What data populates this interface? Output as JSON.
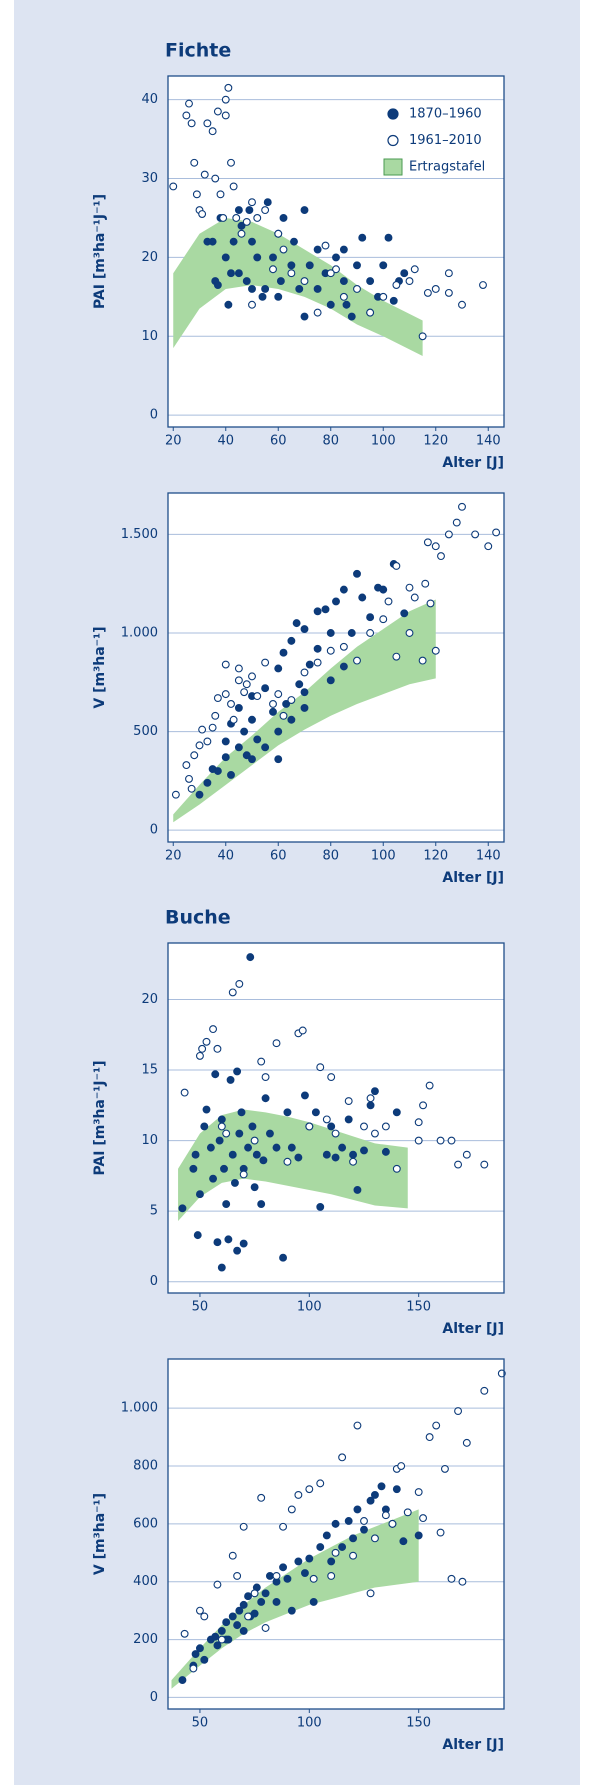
{
  "chart_data": [
    {
      "type": "scatter",
      "title": "Fichte",
      "ylabel": "PAI [m³ha⁻¹J⁻¹]",
      "xlabel": "Alter [J]",
      "xlim": [
        18,
        146
      ],
      "ylim": [
        -1.5,
        43
      ],
      "xticks": [
        20,
        40,
        60,
        80,
        100,
        120,
        140
      ],
      "yticks": [
        0,
        10,
        20,
        30,
        40
      ],
      "grid": true,
      "legend": "upper right",
      "series": [
        {
          "name": "1870–1960",
          "color": "#0d3b7a",
          "marker": "filled",
          "x": [
            33,
            35,
            36,
            37,
            38,
            40,
            41,
            42,
            43,
            45,
            46,
            48,
            49,
            50,
            52,
            54,
            55,
            56,
            58,
            60,
            61,
            62,
            65,
            66,
            68,
            70,
            70,
            72,
            75,
            78,
            80,
            82,
            85,
            86,
            88,
            90,
            92,
            95,
            98,
            100,
            102,
            104,
            106,
            108,
            45,
            50,
            60,
            75,
            85,
            95
          ],
          "values": [
            22,
            22,
            17,
            16.5,
            25,
            20,
            14,
            18,
            22,
            18,
            24,
            17,
            26,
            16,
            20,
            15,
            16,
            27,
            20,
            23,
            17,
            25,
            19,
            22,
            16,
            12.5,
            26,
            19,
            21,
            18,
            14,
            20,
            17,
            14,
            12.5,
            19,
            22.5,
            17,
            15,
            19,
            22.5,
            14.5,
            17,
            18,
            26,
            22,
            15,
            16,
            21,
            13
          ]
        },
        {
          "name": "1961–2010",
          "color": "#0d3b7a",
          "marker": "open",
          "x": [
            20,
            25,
            26,
            27,
            28,
            29,
            30,
            31,
            32,
            33,
            35,
            36,
            37,
            38,
            39,
            40,
            41,
            42,
            43,
            44,
            46,
            48,
            50,
            52,
            55,
            58,
            60,
            62,
            65,
            70,
            75,
            78,
            82,
            85,
            90,
            95,
            100,
            105,
            110,
            112,
            115,
            117,
            120,
            125,
            125,
            130,
            138,
            40,
            50,
            80
          ],
          "values": [
            29,
            38,
            39.5,
            37,
            32,
            28,
            26,
            25.5,
            30.5,
            37,
            36,
            30,
            38.5,
            28,
            25,
            38,
            41.5,
            32,
            29,
            25,
            23,
            24.5,
            27,
            25,
            26,
            18.5,
            23,
            21,
            18,
            17,
            13,
            21.5,
            18.5,
            15,
            16,
            13,
            15,
            16.5,
            17,
            18.5,
            10,
            15.5,
            16,
            18,
            15.5,
            14,
            16.5,
            40,
            14,
            18
          ]
        }
      ],
      "band": {
        "name": "Ertragstafel",
        "color": "#a9d9a2",
        "x": [
          20,
          30,
          40,
          50,
          60,
          70,
          80,
          90,
          100,
          115
        ],
        "lower": [
          8.5,
          13.5,
          16,
          16.5,
          16,
          15,
          13.5,
          11.5,
          10,
          7.5
        ],
        "upper": [
          18,
          23,
          25,
          24.5,
          23,
          21,
          19,
          16.5,
          14.5,
          12
        ]
      }
    },
    {
      "type": "scatter",
      "ylabel": "V [m³ha⁻¹]",
      "xlabel": "Alter [J]",
      "xlim": [
        18,
        146
      ],
      "ylim": [
        -60,
        1710
      ],
      "xticks": [
        20,
        40,
        60,
        80,
        100,
        120,
        140
      ],
      "yticks": [
        0,
        500,
        {
          "value": 1000,
          "label": "1.000"
        },
        {
          "value": 1500,
          "label": "1.500"
        }
      ],
      "grid": true,
      "series": [
        {
          "color": "#0d3b7a",
          "marker": "filled",
          "x": [
            30,
            33,
            35,
            37,
            40,
            40,
            42,
            42,
            45,
            45,
            47,
            48,
            50,
            50,
            52,
            55,
            55,
            58,
            60,
            60,
            62,
            63,
            65,
            65,
            67,
            68,
            70,
            70,
            72,
            75,
            75,
            78,
            80,
            80,
            82,
            85,
            88,
            90,
            92,
            95,
            98,
            100,
            104,
            108,
            60,
            70,
            85,
            50
          ],
          "values": [
            180,
            240,
            310,
            300,
            370,
            450,
            280,
            540,
            420,
            620,
            500,
            380,
            560,
            680,
            460,
            720,
            420,
            600,
            500,
            820,
            900,
            640,
            560,
            960,
            1050,
            740,
            1020,
            700,
            840,
            1110,
            920,
            1120,
            1000,
            760,
            1160,
            1220,
            1000,
            1300,
            1180,
            1080,
            1230,
            1220,
            1350,
            1100,
            360,
            620,
            830,
            360
          ]
        },
        {
          "color": "#0d3b7a",
          "marker": "open",
          "x": [
            21,
            25,
            26,
            27,
            28,
            30,
            31,
            33,
            35,
            36,
            37,
            40,
            40,
            42,
            43,
            45,
            45,
            47,
            48,
            50,
            52,
            55,
            58,
            60,
            62,
            65,
            70,
            75,
            80,
            85,
            90,
            95,
            100,
            102,
            105,
            110,
            112,
            115,
            116,
            118,
            120,
            122,
            125,
            128,
            130,
            135,
            140,
            143,
            117,
            120,
            110,
            105
          ],
          "values": [
            180,
            330,
            260,
            210,
            380,
            430,
            510,
            450,
            520,
            580,
            670,
            690,
            840,
            640,
            560,
            760,
            820,
            700,
            740,
            780,
            680,
            850,
            640,
            690,
            580,
            660,
            800,
            850,
            910,
            930,
            860,
            1000,
            1070,
            1160,
            880,
            1000,
            1180,
            860,
            1250,
            1150,
            910,
            1390,
            1500,
            1560,
            1640,
            1500,
            1440,
            1510,
            1460,
            1440,
            1230,
            1340
          ]
        }
      ],
      "band": {
        "color": "#a9d9a2",
        "x": [
          20,
          30,
          40,
          50,
          60,
          70,
          80,
          90,
          100,
          110,
          120
        ],
        "lower": [
          40,
          130,
          230,
          330,
          430,
          510,
          580,
          640,
          690,
          740,
          770
        ],
        "upper": [
          80,
          230,
          370,
          480,
          600,
          700,
          820,
          930,
          1020,
          1110,
          1170
        ]
      }
    },
    {
      "type": "scatter",
      "title": "Buche",
      "ylabel": "PAI [m³ha⁻¹J⁻¹]",
      "xlabel": "Alter [J]",
      "xlim": [
        35.4,
        189
      ],
      "ylim": [
        -0.8,
        24
      ],
      "xticks": [
        50,
        100,
        150
      ],
      "yticks": [
        0,
        5,
        10,
        15,
        20
      ],
      "grid": true,
      "series": [
        {
          "color": "#0d3b7a",
          "marker": "filled",
          "x": [
            42,
            47,
            48,
            49,
            50,
            52,
            53,
            55,
            56,
            57,
            58,
            59,
            60,
            60,
            61,
            62,
            63,
            64,
            65,
            66,
            67,
            67,
            68,
            69,
            70,
            70,
            72,
            73,
            74,
            75,
            76,
            78,
            79,
            80,
            82,
            85,
            88,
            90,
            92,
            95,
            98,
            100,
            103,
            105,
            108,
            110,
            112,
            115,
            118,
            120,
            122,
            125,
            128,
            130,
            135,
            140
          ],
          "values": [
            5.2,
            8,
            9,
            3.3,
            6.2,
            11,
            12.2,
            9.5,
            7.3,
            14.7,
            2.8,
            10,
            1,
            11.5,
            8,
            5.5,
            3,
            14.3,
            9,
            7,
            2.2,
            14.9,
            10.5,
            12,
            2.7,
            8,
            9.5,
            23,
            11,
            6.7,
            9,
            5.5,
            8.6,
            13,
            10.5,
            9.5,
            1.7,
            12,
            9.5,
            8.8,
            13.2,
            11,
            12,
            5.3,
            9,
            11,
            8.8,
            9.5,
            11.5,
            9,
            6.5,
            9.3,
            12.5,
            13.5,
            9.2,
            12
          ]
        },
        {
          "color": "#0d3b7a",
          "marker": "open",
          "x": [
            43,
            50,
            51,
            53,
            56,
            58,
            60,
            62,
            65,
            68,
            70,
            75,
            78,
            80,
            85,
            90,
            95,
            97,
            100,
            105,
            108,
            110,
            112,
            118,
            120,
            125,
            128,
            130,
            135,
            140,
            150,
            152,
            155,
            160,
            165,
            168,
            172,
            180,
            150
          ],
          "values": [
            13.4,
            16,
            16.5,
            17,
            17.9,
            16.5,
            11,
            10.5,
            20.5,
            21.1,
            7.6,
            10,
            15.6,
            14.5,
            16.9,
            8.5,
            17.6,
            17.8,
            11,
            15.2,
            11.5,
            14.5,
            10.5,
            12.8,
            8.5,
            11,
            13,
            10.5,
            11,
            8,
            10,
            12.5,
            13.9,
            10,
            10,
            8.3,
            9,
            8.3,
            11.3
          ]
        }
      ],
      "band": {
        "color": "#a9d9a2",
        "x": [
          40,
          50,
          60,
          70,
          80,
          90,
          100,
          110,
          120,
          130,
          145
        ],
        "lower": [
          4.3,
          6,
          7,
          7.3,
          7.1,
          6.8,
          6.5,
          6.2,
          5.8,
          5.4,
          5.2
        ],
        "upper": [
          8,
          10.5,
          11.8,
          12.2,
          12,
          11.7,
          11.3,
          10.8,
          10.3,
          9.8,
          9.5
        ]
      }
    },
    {
      "type": "scatter",
      "ylabel": "V [m³ha⁻¹]",
      "xlabel": "Alter [J]",
      "xlim": [
        35.4,
        189
      ],
      "ylim": [
        -40,
        1170
      ],
      "xticks": [
        50,
        100,
        150
      ],
      "yticks": [
        0,
        200,
        400,
        600,
        800,
        {
          "value": 1000,
          "label": "1.000"
        }
      ],
      "grid": true,
      "series": [
        {
          "color": "#0d3b7a",
          "marker": "filled",
          "x": [
            42,
            47,
            48,
            50,
            52,
            55,
            57,
            58,
            60,
            62,
            63,
            65,
            67,
            68,
            70,
            70,
            72,
            75,
            76,
            78,
            80,
            82,
            85,
            85,
            88,
            90,
            92,
            95,
            98,
            100,
            102,
            105,
            108,
            110,
            112,
            115,
            118,
            120,
            122,
            125,
            128,
            130,
            133,
            135,
            138,
            140,
            143,
            150,
            62,
            73
          ],
          "values": [
            60,
            110,
            150,
            170,
            130,
            200,
            210,
            180,
            230,
            260,
            200,
            280,
            250,
            300,
            320,
            230,
            350,
            290,
            380,
            330,
            360,
            420,
            400,
            330,
            450,
            410,
            300,
            470,
            430,
            480,
            330,
            520,
            560,
            470,
            600,
            520,
            610,
            550,
            650,
            580,
            680,
            700,
            730,
            650,
            600,
            720,
            540,
            560,
            200,
            280
          ]
        },
        {
          "color": "#0d3b7a",
          "marker": "open",
          "x": [
            43,
            47,
            50,
            52,
            58,
            60,
            65,
            67,
            70,
            72,
            75,
            78,
            80,
            85,
            88,
            92,
            95,
            100,
            102,
            105,
            110,
            112,
            115,
            120,
            122,
            125,
            128,
            130,
            135,
            138,
            140,
            142,
            145,
            150,
            152,
            155,
            158,
            160,
            162,
            165,
            168,
            170,
            172,
            180,
            188
          ],
          "values": [
            220,
            100,
            300,
            280,
            390,
            200,
            490,
            420,
            590,
            280,
            360,
            690,
            240,
            420,
            590,
            650,
            700,
            720,
            410,
            740,
            420,
            500,
            830,
            490,
            940,
            610,
            360,
            550,
            630,
            600,
            790,
            800,
            640,
            710,
            620,
            900,
            940,
            570,
            790,
            410,
            990,
            400,
            880,
            1060,
            1120
          ]
        }
      ],
      "band": {
        "color": "#a9d9a2",
        "x": [
          37,
          50,
          60,
          70,
          80,
          90,
          100,
          110,
          120,
          130,
          140,
          150
        ],
        "lower": [
          30,
          110,
          170,
          220,
          260,
          290,
          320,
          340,
          360,
          380,
          390,
          400
        ],
        "upper": [
          60,
          170,
          250,
          320,
          380,
          430,
          480,
          520,
          560,
          590,
          620,
          650
        ]
      }
    }
  ]
}
